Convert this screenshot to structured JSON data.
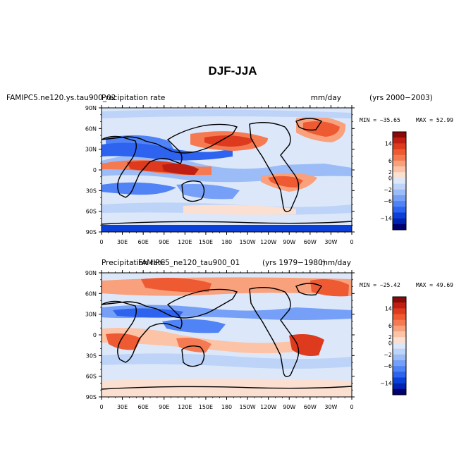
{
  "chart_data": {
    "type": "heatmap",
    "title": "DJF-JJA",
    "colors": {
      "neg": [
        "#000070",
        "#0022b0",
        "#0a3fd8",
        "#2e63f0",
        "#5083f6",
        "#76a0f7",
        "#9bbcf6",
        "#bdd3f7",
        "#dce8fa"
      ],
      "pos": [
        "#fbe0d2",
        "#fcc3a6",
        "#f9a07c",
        "#f57a52",
        "#ee5a32",
        "#dd3a1e",
        "#bf1f12",
        "#8c0a06"
      ],
      "zero_fill": "#dce8fa"
    },
    "panels": [
      {
        "id": "top",
        "case_label": "FAMIPC5.ne120.ys.tau900_02",
        "variable_label": "Precipitation rate",
        "units": "mm/day",
        "years": "(yrs 2000−2003)",
        "min_label": "MIN = −35.65",
        "max_label": "MAX =  52.99",
        "min": -35.65,
        "max": 52.99,
        "xticks": [
          "0",
          "30E",
          "60E",
          "90E",
          "120E",
          "150E",
          "180",
          "150W",
          "120W",
          "90W",
          "60W",
          "30W",
          "0"
        ],
        "yticks": [
          "90N",
          "60N",
          "30N",
          "0",
          "30S",
          "60S",
          "90S"
        ],
        "colorbar_labels": [
          "14",
          "6",
          "2",
          "0",
          "−2",
          "−6",
          "−14"
        ],
        "colorbar_levels": [
          -14,
          -6,
          -2,
          0,
          2,
          6,
          14
        ]
      },
      {
        "id": "bottom",
        "case_label": "FAMIPC5_ne120_tau900_01",
        "variable_label": "Precipitation rate",
        "units": "mm/day",
        "years": "(yrs 1979−1980)",
        "min_label": "MIN = −25.42",
        "max_label": "MAX =  49.69",
        "min": -25.42,
        "max": 49.69,
        "xticks": [
          "0",
          "30E",
          "60E",
          "90E",
          "120E",
          "150E",
          "180",
          "150W",
          "120W",
          "90W",
          "60W",
          "30W",
          "0"
        ],
        "yticks": [
          "90N",
          "60N",
          "30N",
          "0",
          "30S",
          "60S",
          "90S"
        ],
        "colorbar_labels": [
          "14",
          "6",
          "2",
          "0",
          "−2",
          "−6",
          "−14"
        ],
        "colorbar_levels": [
          -14,
          -6,
          -2,
          0,
          2,
          6,
          14
        ]
      }
    ]
  }
}
